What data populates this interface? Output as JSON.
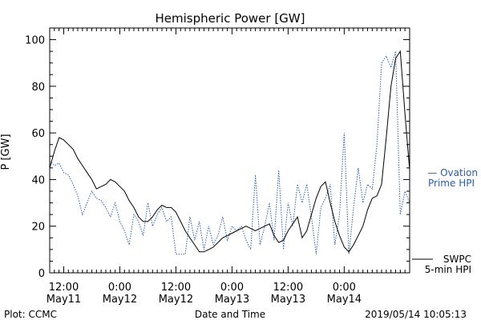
{
  "chart_data": {
    "type": "line",
    "title": "Hemispheric Power [GW]",
    "ylabel": "P [GW]",
    "xlabel": "Date and Time",
    "ylim": [
      0,
      105
    ],
    "yticks": [
      0,
      20,
      40,
      60,
      80,
      100
    ],
    "xlim_hours": [
      0,
      77
    ],
    "x_tick_labels": [
      {
        "hour": 3,
        "time": "12:00",
        "date": "May11"
      },
      {
        "hour": 15,
        "time": "0:00",
        "date": "May12"
      },
      {
        "hour": 27,
        "time": "12:00",
        "date": "May12"
      },
      {
        "hour": 39,
        "time": "0:00",
        "date": "May13"
      },
      {
        "hour": 51,
        "time": "12:00",
        "date": "May13"
      },
      {
        "hour": 63,
        "time": "0:00",
        "date": "May14"
      }
    ],
    "series": [
      {
        "name": "SWPC 5-min HPI",
        "color": "#000000",
        "style": "solid",
        "x": [
          0,
          1,
          2,
          3,
          4,
          5,
          6,
          7,
          8,
          9,
          10,
          11,
          12,
          13,
          14,
          15,
          16,
          17,
          18,
          19,
          20,
          21,
          22,
          23,
          24,
          25,
          26,
          27,
          28,
          29,
          30,
          31,
          32,
          33,
          34,
          35,
          36,
          37,
          38,
          39,
          40,
          41,
          42,
          43,
          44,
          45,
          46,
          47,
          48,
          49,
          50,
          51,
          52,
          53,
          54,
          55,
          56,
          57,
          58,
          59,
          60,
          61,
          62,
          63,
          64,
          65,
          66,
          67,
          68,
          69,
          70,
          71,
          72,
          73,
          74,
          75,
          76,
          77
        ],
        "values": [
          45,
          52,
          58,
          57,
          55,
          53,
          49,
          46,
          43,
          40,
          36,
          37,
          38,
          40,
          39,
          37,
          35,
          31,
          28,
          24,
          22,
          22,
          24,
          27,
          29,
          28,
          28,
          26,
          22,
          18,
          15,
          12,
          9,
          9,
          10,
          11,
          13,
          15,
          16,
          17,
          18,
          19,
          20,
          19,
          18,
          19,
          20,
          21,
          16,
          13,
          14,
          18,
          21,
          24,
          15,
          18,
          25,
          32,
          37,
          39,
          30,
          22,
          16,
          11,
          9,
          12,
          16,
          20,
          27,
          32,
          33,
          38,
          58,
          80,
          92,
          95,
          68,
          44
        ]
      },
      {
        "name": "Ovation Prime HPI",
        "color": "#2a5ea8",
        "style": "dotted",
        "x": [
          0,
          1,
          2,
          3,
          4,
          5,
          6,
          7,
          8,
          9,
          10,
          11,
          12,
          13,
          14,
          15,
          16,
          17,
          18,
          19,
          20,
          21,
          22,
          23,
          24,
          25,
          26,
          27,
          28,
          29,
          30,
          31,
          32,
          33,
          34,
          35,
          36,
          37,
          38,
          39,
          40,
          41,
          42,
          43,
          44,
          45,
          46,
          47,
          48,
          49,
          50,
          51,
          52,
          53,
          54,
          55,
          56,
          57,
          58,
          59,
          60,
          61,
          62,
          63,
          64,
          65,
          66,
          67,
          68,
          69,
          70,
          71,
          72,
          73,
          74,
          75,
          76,
          77
        ],
        "values": [
          48,
          46,
          47,
          43,
          42,
          38,
          33,
          25,
          30,
          35,
          32,
          31,
          28,
          24,
          30,
          22,
          18,
          12,
          25,
          22,
          16,
          30,
          20,
          25,
          28,
          22,
          24,
          8,
          8,
          8,
          24,
          14,
          22,
          10,
          20,
          12,
          16,
          24,
          14,
          20,
          18,
          20,
          14,
          10,
          42,
          12,
          20,
          30,
          14,
          44,
          10,
          30,
          20,
          38,
          30,
          38,
          24,
          8,
          28,
          32,
          38,
          12,
          25,
          60,
          8,
          28,
          45,
          30,
          38,
          36,
          55,
          90,
          93,
          88,
          95,
          25,
          35,
          30
        ]
      }
    ],
    "legend": [
      {
        "text": "— Ovation",
        "text2": "Prime HPI",
        "color": "#2a5ea8"
      },
      {
        "text": "SWPC",
        "text2": "5-min HPI",
        "color": "#000000"
      }
    ],
    "footer_left": "Plot: CCMC",
    "footer_right": "2019/05/14 10:05:13"
  }
}
